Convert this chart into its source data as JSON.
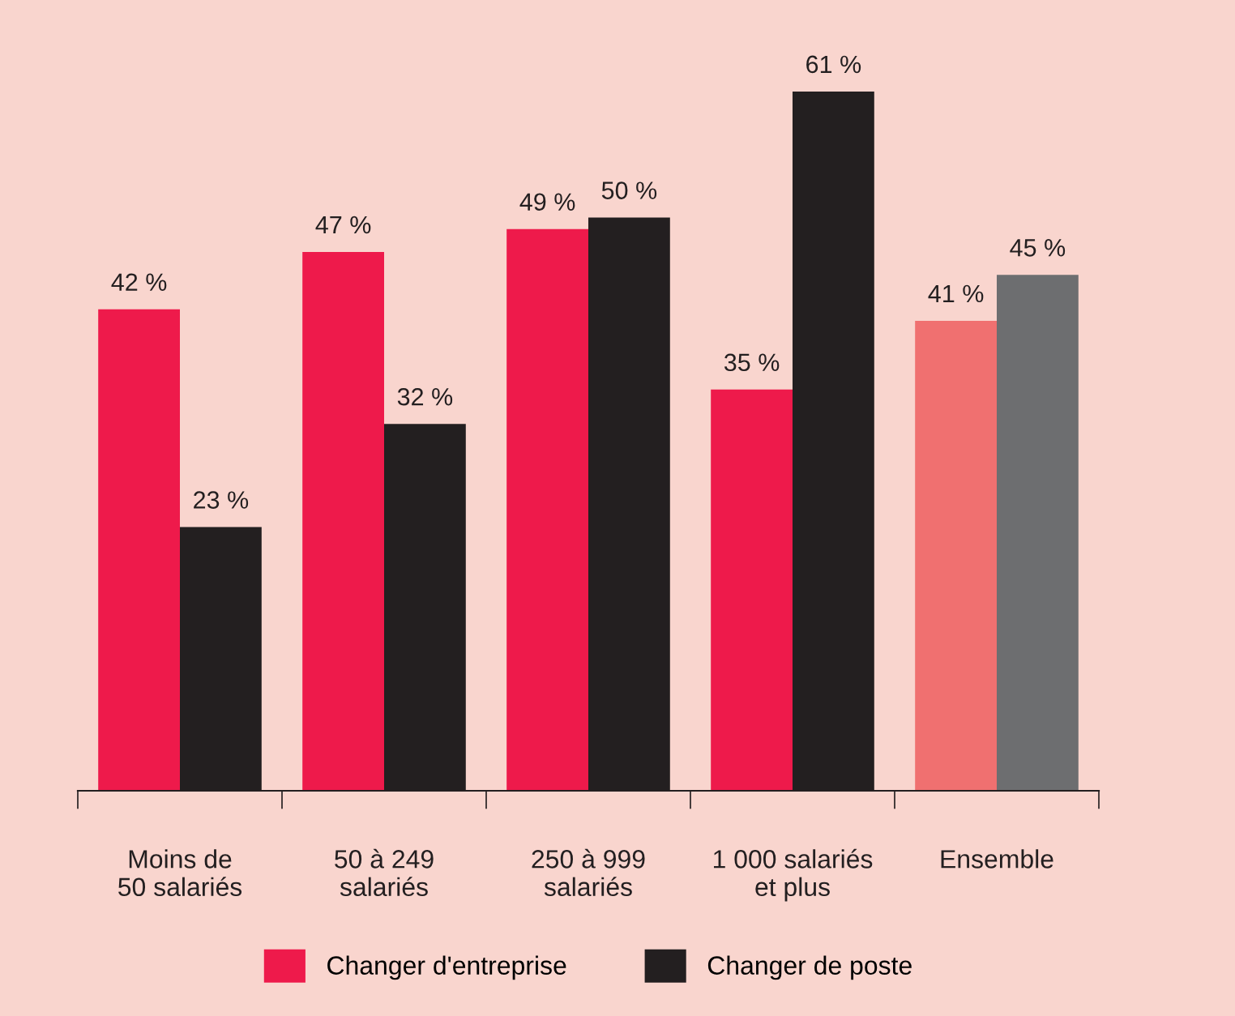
{
  "chart_data": {
    "type": "bar",
    "categories": [
      "Moins de\n50 salariés",
      "50 à 249\nsalariés",
      "250 à 999\nsalariés",
      "1 000 salariés\net plus",
      "Ensemble"
    ],
    "series": [
      {
        "name": "Changer d'entreprise",
        "color": "#ee1a4b",
        "colors": [
          "#ee1a4b",
          "#ee1a4b",
          "#ee1a4b",
          "#ee1a4b",
          "#f07070"
        ],
        "values": [
          42,
          47,
          49,
          35,
          41
        ],
        "value_labels": [
          "42 %",
          "47 %",
          "49 %",
          "35 %",
          "41 %"
        ]
      },
      {
        "name": "Changer de poste",
        "color": "#231f20",
        "colors": [
          "#231f20",
          "#231f20",
          "#231f20",
          "#231f20",
          "#6d6e70"
        ],
        "values": [
          23,
          32,
          50,
          61,
          45
        ],
        "value_labels": [
          "23 %",
          "32 %",
          "50 %",
          "61 %",
          "45 %"
        ]
      }
    ],
    "legend": "bottom",
    "grid": false
  }
}
